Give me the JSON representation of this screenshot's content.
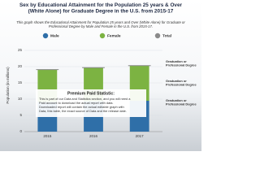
{
  "chart_data": {
    "type": "bar",
    "stacked": true,
    "title": "Sex by Educational Attainment for the Population 25 years & Over (White Alone) for Graduate Degree in the U.S. from 2015-17",
    "subtitle": "This graph shows the Educational Attainment for Population 25 years and Over (White Alone) for Graduate or Professional Degree by Male and Female in the U.S. from 2015-17.",
    "y_label": "Population (in millions)",
    "categories": [
      "2015",
      "2016",
      "2017"
    ],
    "series": [
      {
        "name": "Male",
        "color": "#2f6fa8",
        "values": [
          9.1,
          9.3,
          9.5
        ]
      },
      {
        "name": "Female",
        "color": "#7cb342",
        "values": [
          10.0,
          10.4,
          10.8
        ]
      },
      {
        "name": "Total",
        "color": "#8a8a8a",
        "values": [
          19.1,
          19.7,
          20.3
        ]
      }
    ],
    "ylim": [
      0,
      25
    ],
    "yticks": [
      0,
      5,
      10,
      15,
      20,
      25
    ],
    "grid": true,
    "annotations": [
      "Graduation or Professional Degree",
      "Graduation or Professional Degree",
      "Graduation or Professional Degree"
    ],
    "premium": {
      "heading": "Premium Paid Statistic:",
      "lines": [
        "This is part of our Data and Statistics section, and you will need a",
        "Paid account to download the actual report with data.",
        "Downloaded report will contain the actual editable graph with",
        "Data, this table, the exact source of Data and the release date."
      ]
    }
  }
}
